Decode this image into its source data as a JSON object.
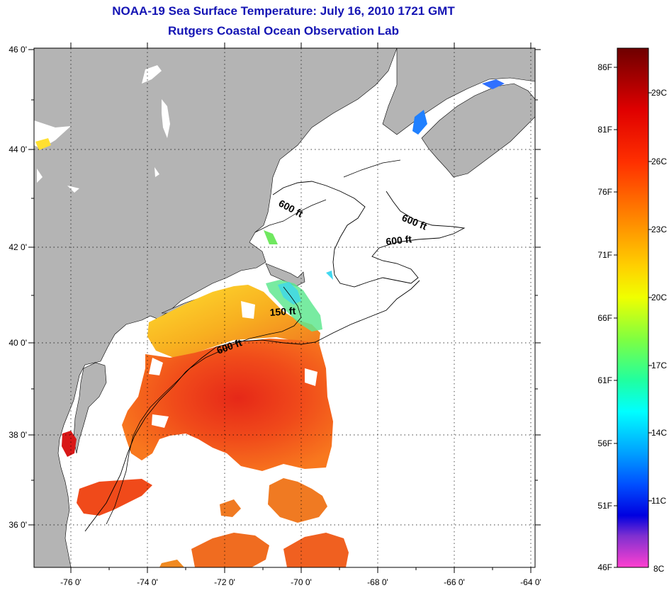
{
  "title": "NOAA-19 Sea Surface Temperature:  July 16, 2010 1721 GMT",
  "subtitle": "Rutgers Coastal Ocean Observation Lab",
  "lat_labels": [
    "46 0'",
    "44 0'",
    "42 0'",
    "40 0'",
    "38 0'",
    "36 0'"
  ],
  "lon_labels": [
    "-76 0'",
    "-74 0'",
    "-72 0'",
    "-70 0'",
    "-68 0'",
    "-66 0'",
    "-64 0'"
  ],
  "contour_labels": [
    "600 ft",
    "600 ft",
    "600 ft",
    "150 ft",
    "600 ft"
  ],
  "colorbar": {
    "fahrenheit": [
      "86F",
      "81F",
      "76F",
      "71F",
      "66F",
      "61F",
      "56F",
      "51F",
      "46F"
    ],
    "celsius": [
      "29C",
      "26C",
      "23C",
      "20C",
      "17C",
      "14C",
      "11C",
      "8C"
    ]
  },
  "colors": {
    "title": "#1414b4",
    "land": "#b4b4b4",
    "ocean_nodata": "#ffffff"
  }
}
